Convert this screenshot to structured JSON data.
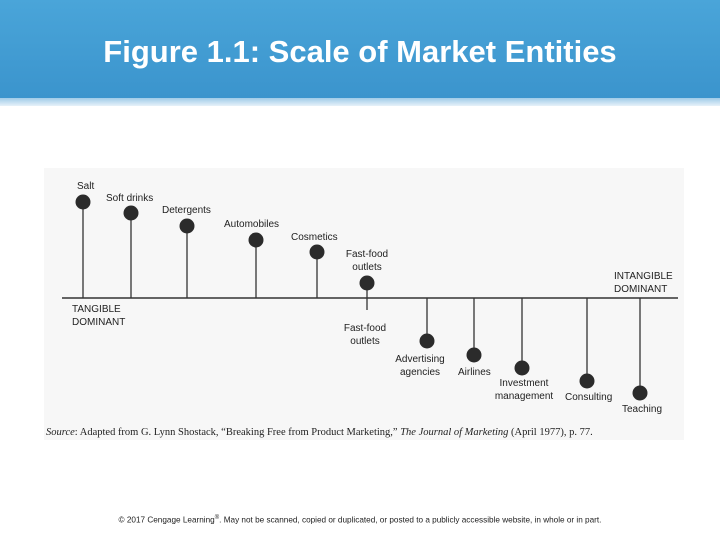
{
  "header": {
    "title": "Figure 1.1: Scale of Market Entities"
  },
  "diagram": {
    "left_end_label": [
      "TANGIBLE",
      "DOMINANT"
    ],
    "right_end_label": [
      "INTANGIBLE",
      "DOMINANT"
    ],
    "entities": [
      {
        "name": "Salt",
        "side": "tangible"
      },
      {
        "name": "Soft drinks",
        "side": "tangible"
      },
      {
        "name": "Detergents",
        "side": "tangible"
      },
      {
        "name": "Automobiles",
        "side": "tangible"
      },
      {
        "name": "Cosmetics",
        "side": "tangible"
      },
      {
        "name": "Fast-food outlets",
        "side": "tangible"
      },
      {
        "name": "Fast-food outlets",
        "side": "intangible"
      },
      {
        "name": "Advertising agencies",
        "side": "intangible"
      },
      {
        "name": "Airlines",
        "side": "intangible"
      },
      {
        "name": "Investment management",
        "side": "intangible"
      },
      {
        "name": "Consulting",
        "side": "intangible"
      },
      {
        "name": "Teaching",
        "side": "intangible"
      }
    ]
  },
  "source": {
    "prefix": "Source",
    "text": ": Adapted from G. Lynn Shostack, “Breaking Free from Product Marketing,” ",
    "journal": "The Journal of Marketing",
    "suffix": " (April 1977), p. 77."
  },
  "footer": {
    "copyright_a": "© 2017 Cengage Learning",
    "copyright_mark": "®",
    "copyright_b": ". May not be scanned, copied or duplicated, or posted to a publicly accessible website, in whole or in part."
  },
  "colors": {
    "header": "#3a93cc",
    "dot": "#2b2b2b",
    "line": "#333333"
  }
}
